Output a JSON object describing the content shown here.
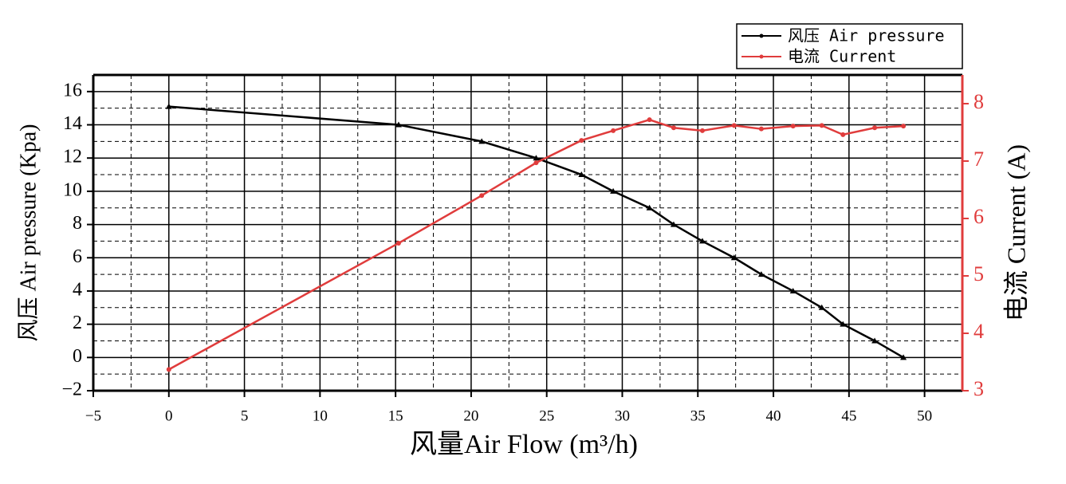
{
  "chart_data": {
    "type": "line",
    "x_label": "风量Air Flow (m³/h)",
    "y_label": "风压 Air pressure (Kpa)",
    "y2_label": "电流 Current (A)",
    "xlim": [
      -5,
      52.5
    ],
    "ylim": [
      -2,
      17
    ],
    "y2lim": [
      3,
      8.5
    ],
    "xticks": [
      {
        "value": -5,
        "label": "−5"
      },
      0,
      5,
      10,
      15,
      20,
      25,
      30,
      35,
      40,
      45,
      50
    ],
    "yticks": [
      {
        "value": -2,
        "label": "−2"
      },
      0,
      2,
      4,
      6,
      8,
      10,
      12,
      14,
      16
    ],
    "y2ticks": [
      3,
      4,
      5,
      6,
      7,
      8
    ],
    "grid": true,
    "legend": "upper right",
    "series": [
      {
        "name": "风压 Air pressure",
        "color": "#000000",
        "x": [
          0,
          15.2,
          20.7,
          24.3,
          27.3,
          29.4,
          31.8,
          33.4,
          35.3,
          37.4,
          39.2,
          41.3,
          43.2,
          44.6,
          46.7,
          48.6
        ],
        "values": [
          15.1,
          14,
          13,
          12,
          11,
          10,
          9,
          8,
          7,
          6,
          5,
          4,
          3,
          2,
          1,
          0
        ]
      },
      {
        "name": "电流 Current",
        "color": "#e03c3c",
        "axis": "y2",
        "x": [
          0,
          15.2,
          20.7,
          24.3,
          27.3,
          29.4,
          31.8,
          33.4,
          35.3,
          37.4,
          39.2,
          41.3,
          43.2,
          44.6,
          46.7,
          48.6
        ],
        "values": [
          3.37,
          5.57,
          6.4,
          6.97,
          7.36,
          7.53,
          7.72,
          7.58,
          7.53,
          7.62,
          7.56,
          7.61,
          7.62,
          7.46,
          7.58,
          7.61
        ]
      }
    ]
  }
}
